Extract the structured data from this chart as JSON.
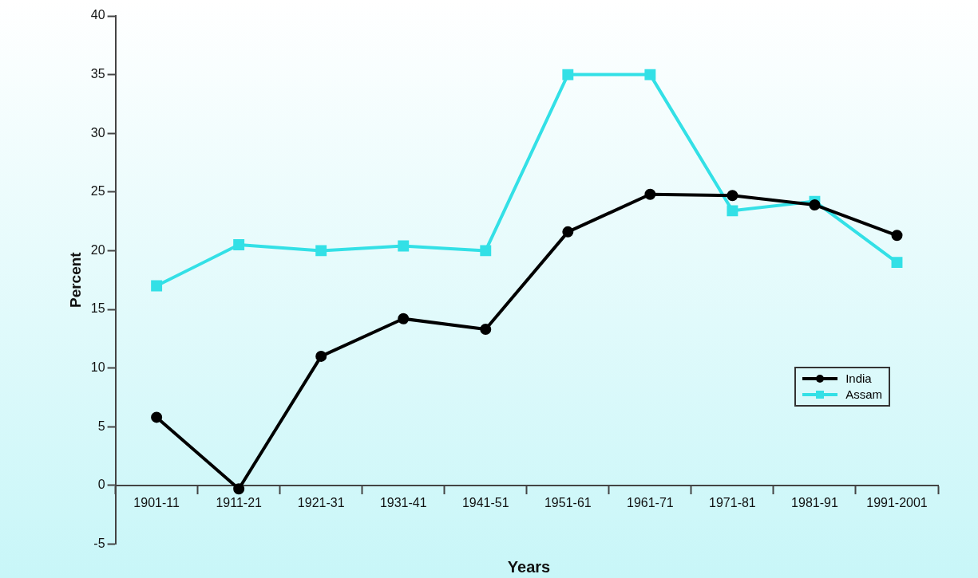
{
  "chart_data": {
    "type": "line",
    "xlabel": "Years",
    "ylabel": "Percent",
    "categories": [
      "1901-11",
      "1911-21",
      "1921-31",
      "1931-41",
      "1941-51",
      "1951-61",
      "1961-71",
      "1971-81",
      "1981-91",
      "1991-2001"
    ],
    "series": [
      {
        "name": "India",
        "color": "#000000",
        "marker": "circle",
        "values": [
          5.8,
          -0.3,
          11.0,
          14.2,
          13.3,
          21.6,
          24.8,
          24.7,
          23.9,
          21.3
        ]
      },
      {
        "name": "Assam",
        "color": "#33e0e6",
        "marker": "square",
        "values": [
          17.0,
          20.5,
          20.0,
          20.4,
          20.0,
          35.0,
          35.0,
          23.4,
          24.2,
          19.0
        ]
      }
    ],
    "ylim": [
      -5,
      40
    ],
    "yticks": [
      -5,
      0,
      5,
      10,
      15,
      20,
      25,
      30,
      35,
      40
    ],
    "grid": false,
    "legend": "bottom right",
    "line_style": "solid"
  }
}
